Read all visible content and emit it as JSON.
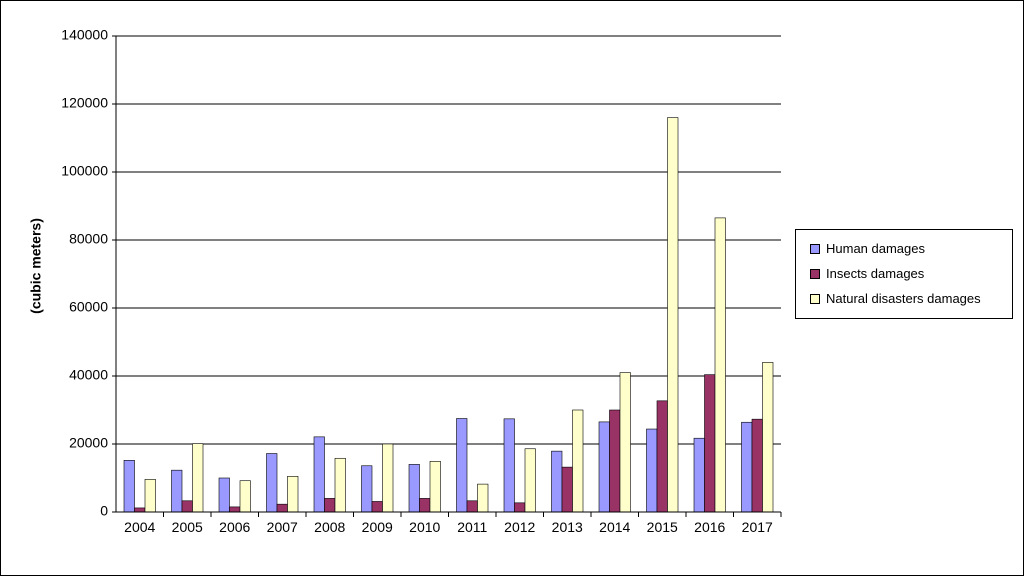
{
  "chart_data": {
    "type": "bar",
    "title": "",
    "xlabel": "",
    "ylabel": "(cubic meters)",
    "ylim": [
      0,
      140000
    ],
    "yticks": [
      "0",
      "20000",
      "40000",
      "60000",
      "80000",
      "100000",
      "120000",
      "140000"
    ],
    "grid": true,
    "legend_position": "right",
    "categories": [
      "2004",
      "2005",
      "2006",
      "2007",
      "2008",
      "2009",
      "2010",
      "2011",
      "2012",
      "2013",
      "2014",
      "2015",
      "2016",
      "2017"
    ],
    "series": [
      {
        "name": "Human damages",
        "color": "#9999ff",
        "values": [
          15200,
          12300,
          10000,
          17200,
          22100,
          13600,
          14000,
          27500,
          27400,
          17900,
          26500,
          24400,
          21700,
          26400
        ]
      },
      {
        "name": "Insects damages",
        "color": "#993366",
        "values": [
          1200,
          3300,
          1500,
          2300,
          4000,
          3100,
          4000,
          3300,
          2700,
          13200,
          30000,
          32700,
          40400,
          27300
        ]
      },
      {
        "name": "Natural disasters damages",
        "color": "#ffffcc",
        "values": [
          9600,
          20100,
          9200,
          10500,
          15800,
          20000,
          14900,
          8200,
          18600,
          30000,
          41000,
          116000,
          86500,
          44000
        ]
      }
    ]
  }
}
